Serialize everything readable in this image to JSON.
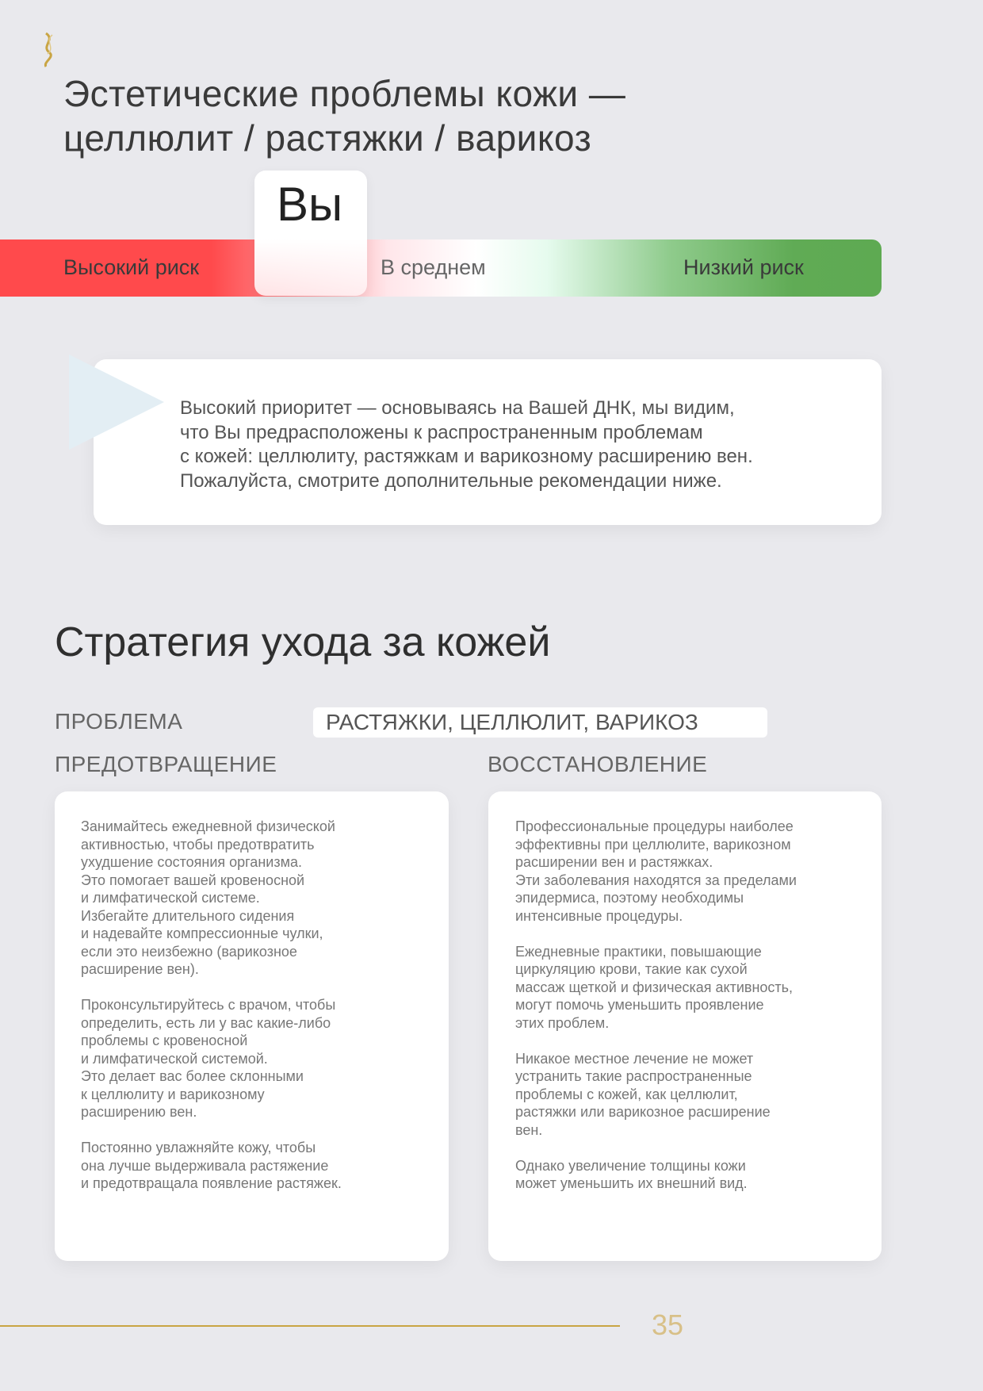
{
  "logo": {
    "icon": "dna-helix-gold-icon",
    "color": "#c9a544"
  },
  "header": {
    "title_line1": "Эстетические проблемы кожи —",
    "title_line2": "целлюлит / растяжки / варикоз"
  },
  "risk_scale": {
    "marker_label": "Вы",
    "marker_position": "high-risk end",
    "labels": {
      "high": "Высокий риск",
      "medium": "В среднем",
      "low": "Низкий риск"
    },
    "colors": {
      "high": "#ff4a4c",
      "medium": "#ffffff",
      "low": "#5eaa52"
    }
  },
  "callout": {
    "lines": [
      "Высокий приоритет — основываясь на Вашей ДНК, мы видим,",
      "что Вы предрасположены к распространенным проблемам",
      "с кожей: целлюлиту, растяжкам и варикозному расширению вен.",
      "Пожалуйста, смотрите дополнительные рекомендации ниже."
    ]
  },
  "strategy": {
    "title": "Стратегия ухода за кожей",
    "problem_label": "ПРОБЛЕМА",
    "problem_value": "РАСТЯЖКИ, ЦЕЛЛЮЛИТ, ВАРИКОЗ",
    "prevention_label": "ПРЕДОТВРАЩЕНИЕ",
    "recovery_label": "ВОССТАНОВЛЕНИЕ",
    "prevention_paragraphs": [
      "Занимайтесь ежедневной физической\nактивностью, чтобы предотвратить\nухудшение состояния организма.\nЭто помогает вашей кровеносной\nи лимфатической системе.\nИзбегайте длительного сидения\nи надевайте компрессионные чулки,\nесли это неизбежно (варикозное\nрасширение вен).",
      "Проконсультируйтесь с врачом, чтобы\nопределить, есть ли у вас какие-либо\nпроблемы с кровеносной\nи лимфатической системой.\nЭто делает вас более склонными\nк целлюлиту и варикозному\nрасширению вен.",
      "Постоянно увлажняйте кожу, чтобы\nона лучше выдерживала растяжение\nи предотвращала появление растяжек."
    ],
    "recovery_paragraphs": [
      "Профессиональные процедуры наиболее\nэффективны при целлюлите, варикозном\nрасширении вен и растяжках.\nЭти заболевания находятся за пределами\nэпидермиса, поэтому необходимы\nинтенсивные процедуры.",
      "Ежедневные практики, повышающие\nциркуляцию крови, такие как сухой\nмассаж щеткой и физическая активность,\nмогут помочь уменьшить проявление\nэтих проблем.",
      "Никакое местное лечение не может\nустранить такие распространенные\nпроблемы с кожей, как целлюлит,\nрастяжки или варикозное расширение\nвен.",
      "Однако увеличение толщины кожи\nможет уменьшить их внешний вид."
    ]
  },
  "footer": {
    "page_number": "35",
    "accent": "#c9a544"
  }
}
